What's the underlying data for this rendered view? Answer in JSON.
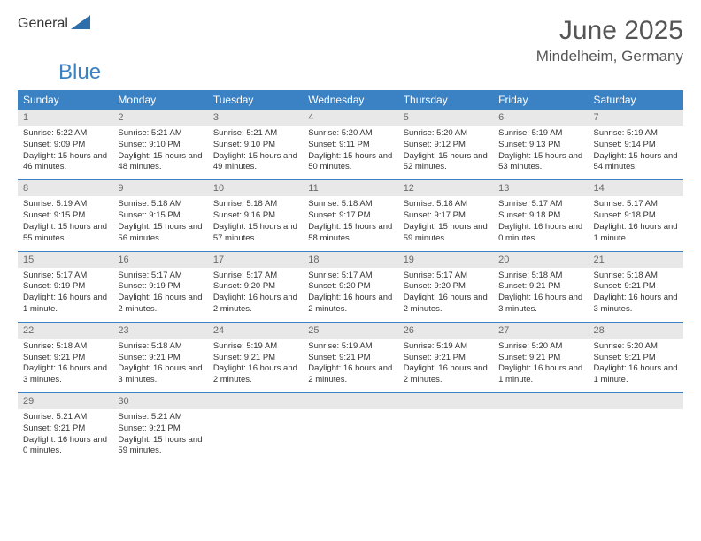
{
  "brand": {
    "part1": "General",
    "part2": "Blue",
    "tri_fill": "#2e6fab"
  },
  "title": "June 2025",
  "location": "Mindelheim, Germany",
  "colors": {
    "header_bg": "#3a82c4",
    "daynum_bg": "#e8e8e8",
    "divider": "#3a82c4",
    "text": "#333333"
  },
  "weekdays": [
    "Sunday",
    "Monday",
    "Tuesday",
    "Wednesday",
    "Thursday",
    "Friday",
    "Saturday"
  ],
  "weeks": [
    [
      {
        "n": "1",
        "sr": "Sunrise: 5:22 AM",
        "ss": "Sunset: 9:09 PM",
        "dl": "Daylight: 15 hours and 46 minutes."
      },
      {
        "n": "2",
        "sr": "Sunrise: 5:21 AM",
        "ss": "Sunset: 9:10 PM",
        "dl": "Daylight: 15 hours and 48 minutes."
      },
      {
        "n": "3",
        "sr": "Sunrise: 5:21 AM",
        "ss": "Sunset: 9:10 PM",
        "dl": "Daylight: 15 hours and 49 minutes."
      },
      {
        "n": "4",
        "sr": "Sunrise: 5:20 AM",
        "ss": "Sunset: 9:11 PM",
        "dl": "Daylight: 15 hours and 50 minutes."
      },
      {
        "n": "5",
        "sr": "Sunrise: 5:20 AM",
        "ss": "Sunset: 9:12 PM",
        "dl": "Daylight: 15 hours and 52 minutes."
      },
      {
        "n": "6",
        "sr": "Sunrise: 5:19 AM",
        "ss": "Sunset: 9:13 PM",
        "dl": "Daylight: 15 hours and 53 minutes."
      },
      {
        "n": "7",
        "sr": "Sunrise: 5:19 AM",
        "ss": "Sunset: 9:14 PM",
        "dl": "Daylight: 15 hours and 54 minutes."
      }
    ],
    [
      {
        "n": "8",
        "sr": "Sunrise: 5:19 AM",
        "ss": "Sunset: 9:15 PM",
        "dl": "Daylight: 15 hours and 55 minutes."
      },
      {
        "n": "9",
        "sr": "Sunrise: 5:18 AM",
        "ss": "Sunset: 9:15 PM",
        "dl": "Daylight: 15 hours and 56 minutes."
      },
      {
        "n": "10",
        "sr": "Sunrise: 5:18 AM",
        "ss": "Sunset: 9:16 PM",
        "dl": "Daylight: 15 hours and 57 minutes."
      },
      {
        "n": "11",
        "sr": "Sunrise: 5:18 AM",
        "ss": "Sunset: 9:17 PM",
        "dl": "Daylight: 15 hours and 58 minutes."
      },
      {
        "n": "12",
        "sr": "Sunrise: 5:18 AM",
        "ss": "Sunset: 9:17 PM",
        "dl": "Daylight: 15 hours and 59 minutes."
      },
      {
        "n": "13",
        "sr": "Sunrise: 5:17 AM",
        "ss": "Sunset: 9:18 PM",
        "dl": "Daylight: 16 hours and 0 minutes."
      },
      {
        "n": "14",
        "sr": "Sunrise: 5:17 AM",
        "ss": "Sunset: 9:18 PM",
        "dl": "Daylight: 16 hours and 1 minute."
      }
    ],
    [
      {
        "n": "15",
        "sr": "Sunrise: 5:17 AM",
        "ss": "Sunset: 9:19 PM",
        "dl": "Daylight: 16 hours and 1 minute."
      },
      {
        "n": "16",
        "sr": "Sunrise: 5:17 AM",
        "ss": "Sunset: 9:19 PM",
        "dl": "Daylight: 16 hours and 2 minutes."
      },
      {
        "n": "17",
        "sr": "Sunrise: 5:17 AM",
        "ss": "Sunset: 9:20 PM",
        "dl": "Daylight: 16 hours and 2 minutes."
      },
      {
        "n": "18",
        "sr": "Sunrise: 5:17 AM",
        "ss": "Sunset: 9:20 PM",
        "dl": "Daylight: 16 hours and 2 minutes."
      },
      {
        "n": "19",
        "sr": "Sunrise: 5:17 AM",
        "ss": "Sunset: 9:20 PM",
        "dl": "Daylight: 16 hours and 2 minutes."
      },
      {
        "n": "20",
        "sr": "Sunrise: 5:18 AM",
        "ss": "Sunset: 9:21 PM",
        "dl": "Daylight: 16 hours and 3 minutes."
      },
      {
        "n": "21",
        "sr": "Sunrise: 5:18 AM",
        "ss": "Sunset: 9:21 PM",
        "dl": "Daylight: 16 hours and 3 minutes."
      }
    ],
    [
      {
        "n": "22",
        "sr": "Sunrise: 5:18 AM",
        "ss": "Sunset: 9:21 PM",
        "dl": "Daylight: 16 hours and 3 minutes."
      },
      {
        "n": "23",
        "sr": "Sunrise: 5:18 AM",
        "ss": "Sunset: 9:21 PM",
        "dl": "Daylight: 16 hours and 3 minutes."
      },
      {
        "n": "24",
        "sr": "Sunrise: 5:19 AM",
        "ss": "Sunset: 9:21 PM",
        "dl": "Daylight: 16 hours and 2 minutes."
      },
      {
        "n": "25",
        "sr": "Sunrise: 5:19 AM",
        "ss": "Sunset: 9:21 PM",
        "dl": "Daylight: 16 hours and 2 minutes."
      },
      {
        "n": "26",
        "sr": "Sunrise: 5:19 AM",
        "ss": "Sunset: 9:21 PM",
        "dl": "Daylight: 16 hours and 2 minutes."
      },
      {
        "n": "27",
        "sr": "Sunrise: 5:20 AM",
        "ss": "Sunset: 9:21 PM",
        "dl": "Daylight: 16 hours and 1 minute."
      },
      {
        "n": "28",
        "sr": "Sunrise: 5:20 AM",
        "ss": "Sunset: 9:21 PM",
        "dl": "Daylight: 16 hours and 1 minute."
      }
    ],
    [
      {
        "n": "29",
        "sr": "Sunrise: 5:21 AM",
        "ss": "Sunset: 9:21 PM",
        "dl": "Daylight: 16 hours and 0 minutes."
      },
      {
        "n": "30",
        "sr": "Sunrise: 5:21 AM",
        "ss": "Sunset: 9:21 PM",
        "dl": "Daylight: 15 hours and 59 minutes."
      },
      null,
      null,
      null,
      null,
      null
    ]
  ]
}
